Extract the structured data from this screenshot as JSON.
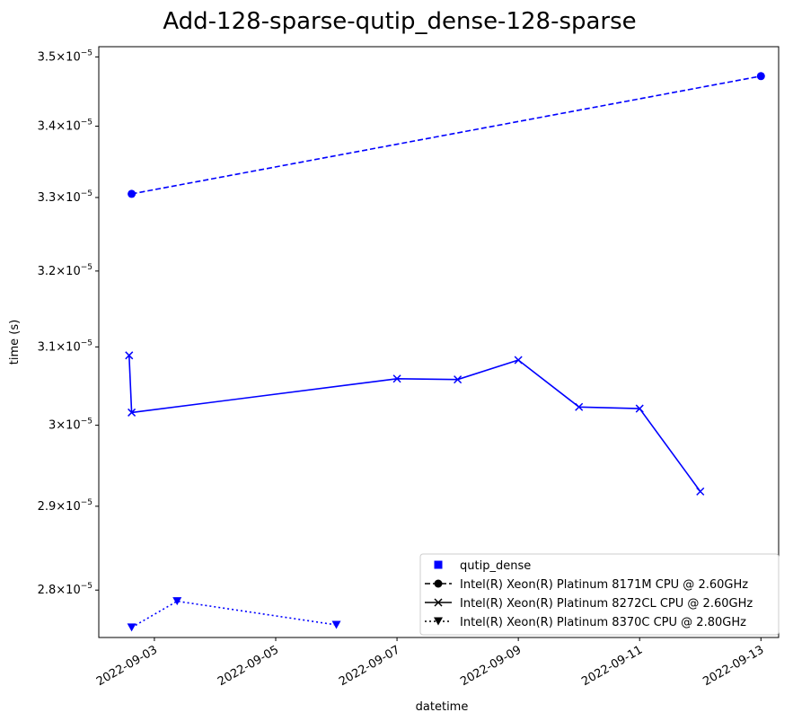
{
  "chart_data": {
    "type": "line",
    "title": "Add-128-sparse-qutip_dense-128-sparse",
    "xlabel": "datetime",
    "ylabel": "time (s)",
    "yscale": "log",
    "ylim": [
      2.745e-05,
      3.515e-05
    ],
    "xlim": [
      "2022-09-02 02:00",
      "2022-09-13 07:00"
    ],
    "grid": false,
    "legend_placement": "lower-right",
    "color": "#0000ff",
    "x_ticks": [
      "2022-09-03",
      "2022-09-05",
      "2022-09-07",
      "2022-09-09",
      "2022-09-11",
      "2022-09-13"
    ],
    "y_ticks": [
      {
        "value": 2.8e-05,
        "mantissa": "2.8",
        "base": "10",
        "exp": "−5"
      },
      {
        "value": 2.9e-05,
        "mantissa": "2.9",
        "base": "10",
        "exp": "−5"
      },
      {
        "value": 3e-05,
        "mantissa": "3",
        "base": "10",
        "exp": "−5"
      },
      {
        "value": 3.1e-05,
        "mantissa": "3.1",
        "base": "10",
        "exp": "−5"
      },
      {
        "value": 3.2e-05,
        "mantissa": "3.2",
        "base": "10",
        "exp": "−5"
      },
      {
        "value": 3.3e-05,
        "mantissa": "3.3",
        "base": "10",
        "exp": "−5"
      },
      {
        "value": 3.4e-05,
        "mantissa": "3.4",
        "base": "10",
        "exp": "−5"
      },
      {
        "value": 3.5e-05,
        "mantissa": "3.5",
        "base": "10",
        "exp": "−5"
      }
    ],
    "legend": [
      {
        "label": "qutip_dense",
        "marker": "square",
        "dash": "none"
      },
      {
        "label": "Intel(R) Xeon(R) Platinum 8171M CPU @ 2.60GHz",
        "marker": "circle",
        "dash": "dashed"
      },
      {
        "label": "Intel(R) Xeon(R) Platinum 8272CL CPU @ 2.60GHz",
        "marker": "x",
        "dash": "solid"
      },
      {
        "label": "Intel(R) Xeon(R) Platinum 8370C CPU @ 2.80GHz",
        "marker": "triangle-down",
        "dash": "dotted"
      }
    ],
    "series": [
      {
        "name": "Intel(R) Xeon(R) Platinum 8171M CPU @ 2.60GHz",
        "marker": "circle",
        "dash": "dashed",
        "points": [
          {
            "x": "2022-09-02 15:00",
            "y": 3.305e-05
          },
          {
            "x": "2022-09-13 00:00",
            "y": 3.472e-05
          }
        ]
      },
      {
        "name": "Intel(R) Xeon(R) Platinum 8272CL CPU @ 2.60GHz",
        "marker": "x",
        "dash": "solid",
        "points": [
          {
            "x": "2022-09-02 14:00",
            "y": 3.089e-05
          },
          {
            "x": "2022-09-02 15:00",
            "y": 3.016e-05
          },
          {
            "x": "2022-09-07 00:00",
            "y": 3.059e-05
          },
          {
            "x": "2022-09-08 00:00",
            "y": 3.058e-05
          },
          {
            "x": "2022-09-09 00:00",
            "y": 3.083e-05
          },
          {
            "x": "2022-09-10 00:00",
            "y": 3.023e-05
          },
          {
            "x": "2022-09-11 00:00",
            "y": 3.021e-05
          },
          {
            "x": "2022-09-12 00:00",
            "y": 2.918e-05
          }
        ]
      },
      {
        "name": "Intel(R) Xeon(R) Platinum 8370C CPU @ 2.80GHz",
        "marker": "triangle-down",
        "dash": "dotted",
        "points": [
          {
            "x": "2022-09-02 15:00",
            "y": 2.7565e-05
          },
          {
            "x": "2022-09-03 09:00",
            "y": 2.787e-05
          },
          {
            "x": "2022-09-06 00:00",
            "y": 2.7595e-05
          }
        ]
      }
    ]
  }
}
